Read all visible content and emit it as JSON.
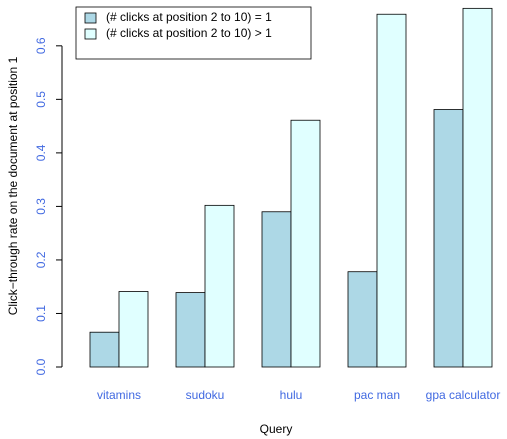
{
  "chart_data": {
    "type": "bar",
    "categories": [
      "vitamins",
      "sudoku",
      "hulu",
      "pac man",
      "gpa calculator"
    ],
    "series": [
      {
        "name": "(# clicks at position 2 to 10) = 1",
        "color": "#add8e6",
        "values": [
          0.065,
          0.139,
          0.29,
          0.178,
          0.481
        ]
      },
      {
        "name": "(# clicks at position 2 to 10) > 1",
        "color": "#e0ffff",
        "values": [
          0.141,
          0.302,
          0.461,
          0.659,
          0.67
        ]
      }
    ],
    "x_label": "Query",
    "y_label": "Click−through rate on the document at position 1",
    "ylim": [
      0,
      0.68
    ],
    "yticks": [
      {
        "value": 0,
        "label": "0.0"
      },
      0.1,
      0.2,
      0.3,
      0.4,
      0.5,
      0.6
    ],
    "legend": "top-left",
    "tick_label_color": "#4169e1"
  }
}
